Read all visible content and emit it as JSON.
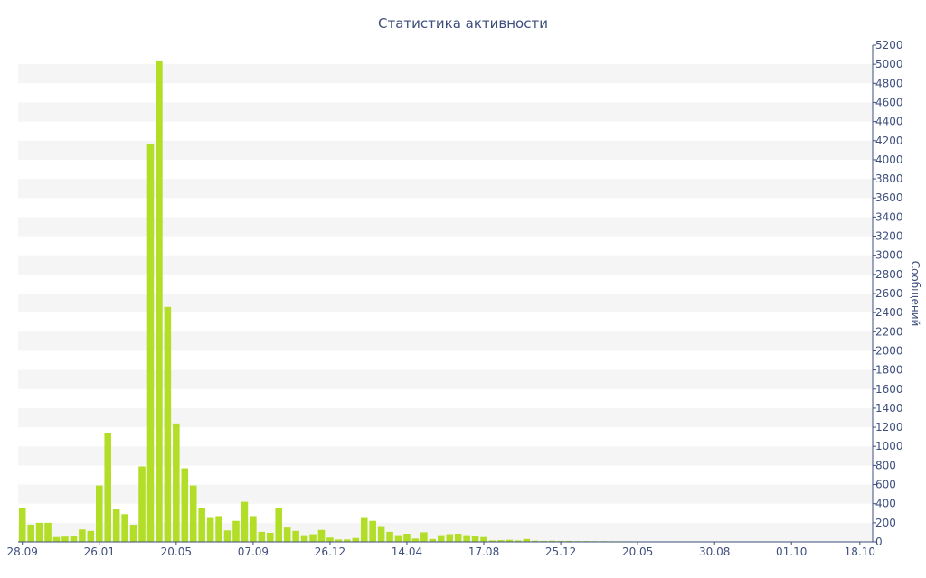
{
  "chart_data": {
    "type": "bar",
    "title": "Статистика активности",
    "xlabel": "",
    "ylabel": "Сообщений",
    "y_axis_side": "right",
    "ylim": [
      0,
      5200
    ],
    "ytick_step": 200,
    "grid": "alternating horizontal bands",
    "x_tick_labels": [
      "28.09",
      "26.01",
      "20.05",
      "07.09",
      "26.12",
      "14.04",
      "17.08",
      "25.12",
      "20.05",
      "30.08",
      "01.10",
      "18.10"
    ],
    "x_tick_label_bar_index": [
      0,
      9,
      18,
      27,
      36,
      45,
      54,
      63,
      72,
      81,
      90,
      98
    ],
    "values": [
      350,
      180,
      200,
      200,
      50,
      55,
      60,
      130,
      115,
      590,
      1140,
      340,
      290,
      180,
      790,
      4160,
      5040,
      2460,
      1240,
      770,
      590,
      355,
      250,
      270,
      120,
      220,
      420,
      270,
      105,
      95,
      350,
      150,
      115,
      70,
      80,
      125,
      45,
      25,
      25,
      40,
      250,
      220,
      165,
      105,
      70,
      85,
      35,
      100,
      30,
      70,
      80,
      85,
      70,
      60,
      50,
      15,
      18,
      22,
      15,
      30,
      12,
      10,
      12,
      10,
      10,
      8,
      8,
      7,
      7,
      6,
      6,
      6,
      5,
      5,
      5,
      5,
      5,
      5,
      5,
      5,
      5,
      5,
      5,
      5,
      5,
      5,
      5,
      5,
      5,
      5,
      5,
      5,
      5,
      5,
      5,
      5,
      5,
      5,
      5,
      5
    ],
    "colors": {
      "bar": "#b2de27",
      "text": "#3e4f7e",
      "band": "#f5f5f5"
    }
  }
}
